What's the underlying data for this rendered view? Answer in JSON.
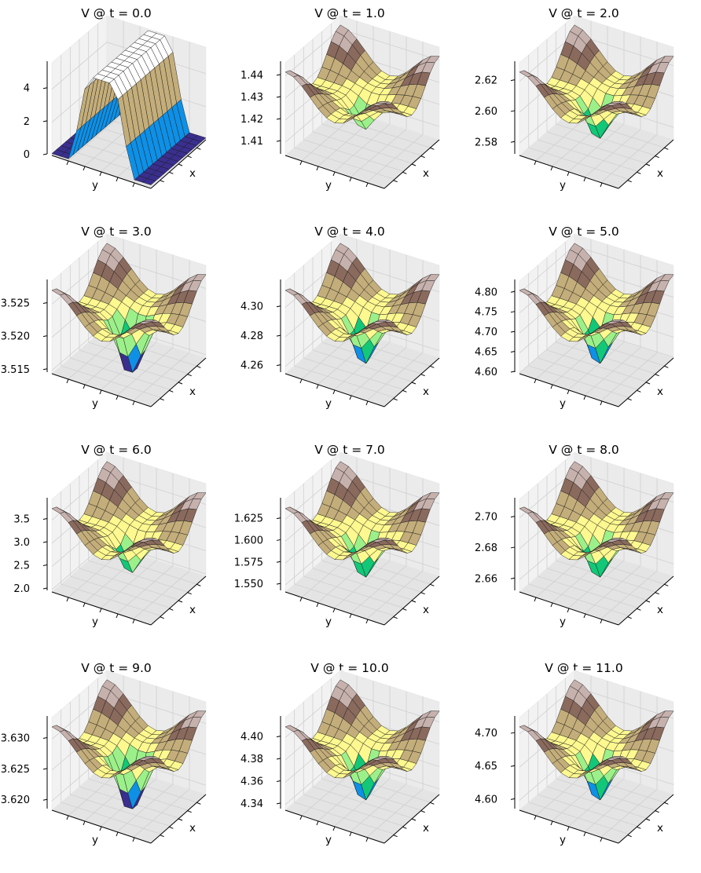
{
  "chart_data": [
    {
      "type": "surface",
      "title": "V @ t = 0.0",
      "xlabel": "x",
      "ylabel": "y",
      "zticks": [
        "0",
        "2",
        "4"
      ],
      "zlim": [
        0,
        5.6
      ],
      "shape": "ridge",
      "depth": 1.0
    },
    {
      "type": "surface",
      "title": "V @ t = 1.0",
      "xlabel": "x",
      "ylabel": "y",
      "zticks": [
        "1.41",
        "1.42",
        "1.43",
        "1.44"
      ],
      "zlim": [
        1.404,
        1.446
      ],
      "shape": "well",
      "depth": 0.55
    },
    {
      "type": "surface",
      "title": "V @ t = 2.0",
      "xlabel": "x",
      "ylabel": "y",
      "zticks": [
        "2.58",
        "2.60",
        "2.62"
      ],
      "zlim": [
        2.572,
        2.632
      ],
      "shape": "well",
      "depth": 0.75
    },
    {
      "type": "surface",
      "title": "V @ t = 3.0",
      "xlabel": "x",
      "ylabel": "y",
      "zticks": [
        "3.515",
        "3.520",
        "3.525"
      ],
      "zlim": [
        3.5145,
        3.5285
      ],
      "shape": "well",
      "depth": 1.25
    },
    {
      "type": "surface",
      "title": "V @ t = 4.0",
      "xlabel": "x",
      "ylabel": "y",
      "zticks": [
        "4.26",
        "4.28",
        "4.30"
      ],
      "zlim": [
        4.255,
        4.318
      ],
      "shape": "well",
      "depth": 0.9
    },
    {
      "type": "surface",
      "title": "V @ t = 5.0",
      "xlabel": "x",
      "ylabel": "y",
      "zticks": [
        "4.60",
        "4.65",
        "4.70",
        "4.75",
        "4.80"
      ],
      "zlim": [
        4.598,
        4.83
      ],
      "shape": "well",
      "depth": 0.9
    },
    {
      "type": "surface",
      "title": "V @ t = 6.0",
      "xlabel": "x",
      "ylabel": "y",
      "zticks": [
        "2.0",
        "2.5",
        "3.0",
        "3.5"
      ],
      "zlim": [
        1.95,
        3.95
      ],
      "shape": "well",
      "depth": 0.7
    },
    {
      "type": "surface",
      "title": "V @ t = 7.0",
      "xlabel": "x",
      "ylabel": "y",
      "zticks": [
        "1.550",
        "1.575",
        "1.600",
        "1.625"
      ],
      "zlim": [
        1.542,
        1.648
      ],
      "shape": "well",
      "depth": 0.8
    },
    {
      "type": "surface",
      "title": "V @ t = 8.0",
      "xlabel": "x",
      "ylabel": "y",
      "zticks": [
        "2.66",
        "2.68",
        "2.70"
      ],
      "zlim": [
        2.652,
        2.712
      ],
      "shape": "well",
      "depth": 0.8
    },
    {
      "type": "surface",
      "title": "V @ t = 9.0",
      "xlabel": "x",
      "ylabel": "y",
      "zticks": [
        "3.620",
        "3.625",
        "3.630"
      ],
      "zlim": [
        3.6185,
        3.6335
      ],
      "shape": "well",
      "depth": 1.25
    },
    {
      "type": "surface",
      "title": "V @ t = 10.0",
      "xlabel": "x",
      "ylabel": "y",
      "zticks": [
        "4.34",
        "4.36",
        "4.38",
        "4.40"
      ],
      "zlim": [
        4.335,
        4.418
      ],
      "shape": "well",
      "depth": 0.9
    },
    {
      "type": "surface",
      "title": "V @ t = 11.0",
      "xlabel": "x",
      "ylabel": "y",
      "zticks": [
        "4.60",
        "4.65",
        "4.70"
      ],
      "zlim": [
        4.585,
        4.725
      ],
      "shape": "well",
      "depth": 0.9
    }
  ],
  "colormap": [
    "#3a2f8f",
    "#0e90e6",
    "#12c878",
    "#9cf08a",
    "#fdf88f",
    "#c3ad7a",
    "#8a6a5d",
    "#c6b1ad",
    "#ffffff"
  ],
  "pane_color": "#f2f2f2",
  "grid_color": "#d0d0d0"
}
